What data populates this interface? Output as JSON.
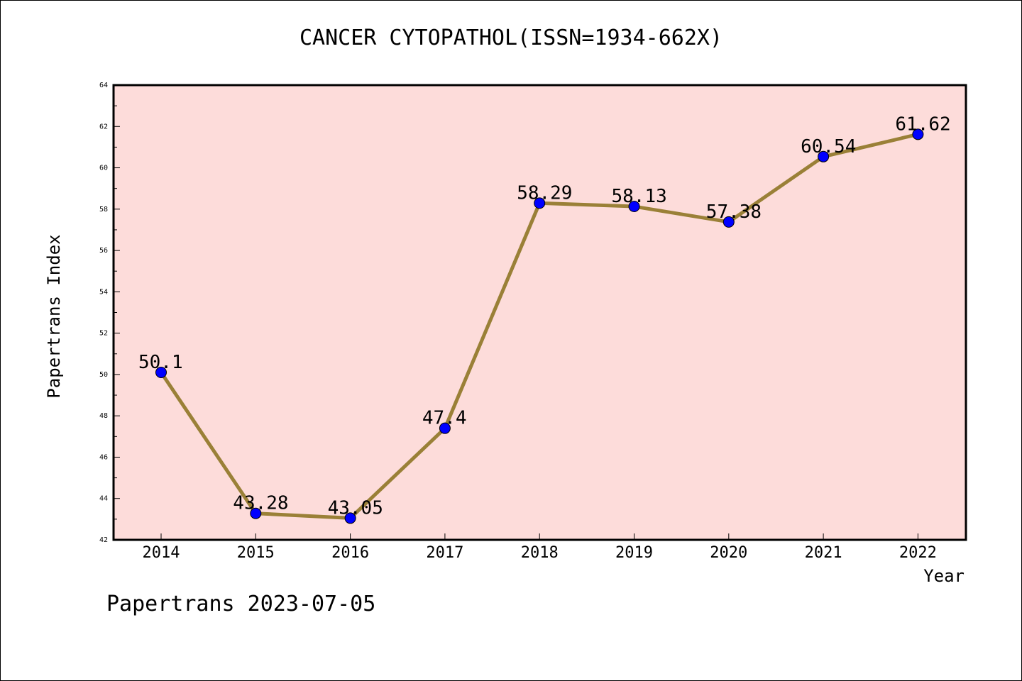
{
  "chart_data": {
    "type": "line",
    "title": "CANCER CYTOPATHOL(ISSN=1934-662X)",
    "xlabel": "Year",
    "ylabel": "Papertrans Index",
    "categories": [
      "2014",
      "2015",
      "2016",
      "2017",
      "2018",
      "2019",
      "2020",
      "2021",
      "2022"
    ],
    "series": [
      {
        "values": [
          50.1,
          43.28,
          43.05,
          47.4,
          58.29,
          58.13,
          57.38,
          60.54,
          61.62
        ],
        "labels": [
          "50.1",
          "43.28",
          "43.05",
          "47.4",
          "58.29",
          "58.13",
          "57.38",
          "60.54",
          "61.62"
        ]
      }
    ],
    "ylim": [
      42,
      64
    ],
    "yticks": [
      "42",
      "44",
      "46",
      "48",
      "50",
      "52",
      "54",
      "56",
      "58",
      "60",
      "62",
      "64"
    ],
    "grid": false,
    "colors": {
      "plot_background": "#fddcda",
      "line": "#9a8037",
      "marker": "#0000ff"
    }
  },
  "footer": "Papertrans 2023-07-05"
}
